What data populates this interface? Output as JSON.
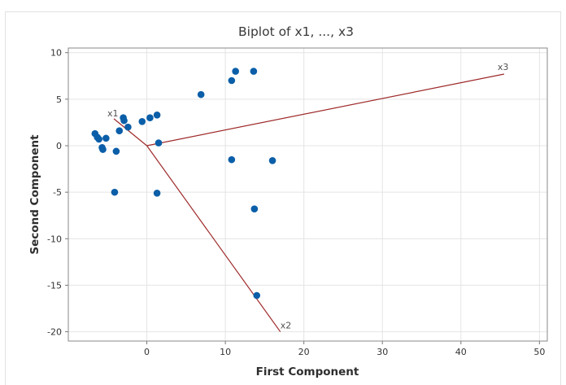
{
  "chart_data": {
    "type": "scatter",
    "title": "Biplot of x1, ..., x3",
    "xlabel": "First Component",
    "ylabel": "Second Component",
    "xlim": [
      -10,
      51
    ],
    "ylim": [
      -21,
      10.5
    ],
    "xticks": [
      0,
      10,
      20,
      30,
      40,
      50
    ],
    "yticks": [
      10,
      5,
      0,
      -5,
      -10,
      -15,
      -20
    ],
    "grid": true,
    "point_color": "#0b5ea8",
    "vector_color": "#9e2a2b",
    "points": [
      {
        "x": -6.6,
        "y": 1.3
      },
      {
        "x": -6.3,
        "y": 0.9
      },
      {
        "x": -6.1,
        "y": 0.7
      },
      {
        "x": -5.7,
        "y": -0.2
      },
      {
        "x": -5.6,
        "y": -0.4
      },
      {
        "x": -5.2,
        "y": 0.8
      },
      {
        "x": -3.9,
        "y": -0.6
      },
      {
        "x": -3.5,
        "y": 1.6
      },
      {
        "x": -3.0,
        "y": 3.0
      },
      {
        "x": -2.9,
        "y": 2.7
      },
      {
        "x": -2.4,
        "y": 2.0
      },
      {
        "x": -0.6,
        "y": 2.6
      },
      {
        "x": 0.4,
        "y": 3.0
      },
      {
        "x": 1.3,
        "y": 3.3
      },
      {
        "x": 1.5,
        "y": 0.3
      },
      {
        "x": -4.1,
        "y": -5.0
      },
      {
        "x": 1.3,
        "y": -5.1
      },
      {
        "x": 6.9,
        "y": 5.5
      },
      {
        "x": 10.8,
        "y": 7.0
      },
      {
        "x": 11.3,
        "y": 8.0
      },
      {
        "x": 13.6,
        "y": 8.0
      },
      {
        "x": 10.8,
        "y": -1.5
      },
      {
        "x": 16.0,
        "y": -1.6
      },
      {
        "x": 13.7,
        "y": -6.8
      },
      {
        "x": 14.0,
        "y": -16.1
      }
    ],
    "vectors": [
      {
        "name": "x1",
        "x": -4.2,
        "y": 2.9
      },
      {
        "name": "x2",
        "x": 17.0,
        "y": -20.0
      },
      {
        "name": "x3",
        "x": 45.5,
        "y": 7.7
      }
    ]
  }
}
